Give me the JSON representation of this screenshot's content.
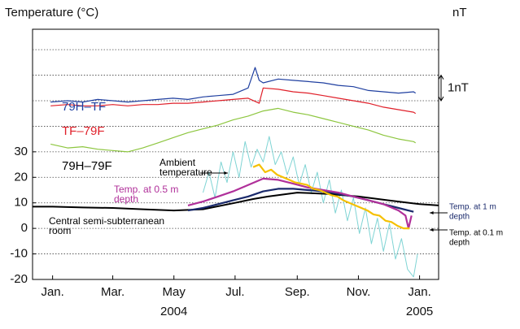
{
  "chart_data": {
    "type": "line",
    "y_label": "Temperature (°C)",
    "y2_label": "nT",
    "ylim": [
      -20,
      78
    ],
    "yticks": [
      30,
      20,
      10,
      0,
      -10,
      -20
    ],
    "grid_values": [
      70,
      60,
      50,
      40,
      30,
      20,
      10,
      0,
      -10
    ],
    "y2lim": [
      -2,
      7.8
    ],
    "scale_bar": {
      "from": 5,
      "to": 6,
      "label": "1nT"
    },
    "xlim": [
      -20,
      385
    ],
    "xticks": [
      {
        "value": 0,
        "label": "Jan."
      },
      {
        "value": 60,
        "label": "Mar."
      },
      {
        "value": 121,
        "label": "May"
      },
      {
        "value": 182,
        "label": "Jul."
      },
      {
        "value": 244,
        "label": "Sep."
      },
      {
        "value": 305,
        "label": "Nov."
      },
      {
        "value": 366,
        "label": "Jan."
      }
    ],
    "year_labels": [
      {
        "value": 121,
        "label": "2004"
      },
      {
        "value": 366,
        "label": "2005"
      }
    ],
    "series": [
      {
        "label": [
          "79H–TF"
        ],
        "color": "#1f3fa0",
        "axis": "y2",
        "x": [
          -2,
          15,
          30,
          45,
          60,
          75,
          90,
          105,
          120,
          135,
          150,
          165,
          180,
          195,
          202,
          206,
          210,
          225,
          240,
          255,
          270,
          285,
          300,
          315,
          330,
          345,
          360,
          362
        ],
        "values": [
          4.95,
          5.0,
          4.95,
          5.05,
          5.0,
          4.95,
          5.0,
          5.05,
          5.1,
          5.05,
          5.15,
          5.2,
          5.25,
          5.5,
          6.3,
          5.8,
          5.7,
          5.85,
          5.8,
          5.75,
          5.7,
          5.6,
          5.55,
          5.4,
          5.35,
          5.3,
          5.35,
          5.3
        ]
      },
      {
        "label": [
          "TF–79F"
        ],
        "color": "#e0202a",
        "axis": "y2",
        "x": [
          -2,
          15,
          30,
          45,
          60,
          75,
          90,
          105,
          120,
          135,
          150,
          165,
          180,
          195,
          206,
          210,
          225,
          240,
          255,
          270,
          285,
          300,
          315,
          330,
          345,
          360,
          362
        ],
        "values": [
          4.8,
          4.85,
          4.8,
          4.8,
          4.85,
          4.8,
          4.85,
          4.85,
          4.9,
          4.9,
          4.95,
          5.0,
          5.05,
          5.1,
          4.9,
          5.5,
          5.45,
          5.35,
          5.3,
          5.2,
          5.1,
          5.0,
          4.9,
          4.75,
          4.65,
          4.55,
          4.5
        ]
      },
      {
        "label": [
          "79H–79F"
        ],
        "color": "#8dc63f",
        "axis": "y2",
        "x": [
          -2,
          15,
          30,
          45,
          60,
          75,
          90,
          105,
          120,
          135,
          150,
          165,
          180,
          195,
          210,
          225,
          240,
          255,
          270,
          285,
          300,
          315,
          330,
          345,
          360,
          362
        ],
        "values": [
          3.3,
          3.15,
          3.2,
          3.1,
          3.05,
          3.0,
          3.15,
          3.35,
          3.55,
          3.75,
          3.9,
          4.05,
          4.25,
          4.4,
          4.6,
          4.7,
          4.55,
          4.45,
          4.3,
          4.15,
          4.0,
          3.85,
          3.65,
          3.5,
          3.4,
          3.35
        ]
      },
      {
        "label": [
          "Ambient",
          "temperature"
        ],
        "color": "#7fd4d4",
        "x": [
          150,
          156,
          162,
          168,
          174,
          180,
          186,
          192,
          198,
          204,
          210,
          216,
          222,
          228,
          234,
          240,
          246,
          252,
          258,
          264,
          270,
          276,
          282,
          288,
          294,
          300,
          306,
          312,
          318,
          324,
          330,
          336,
          342,
          348,
          354,
          360,
          364
        ],
        "values": [
          14,
          22,
          12,
          26,
          18,
          30,
          20,
          34,
          24,
          31,
          26,
          36,
          25,
          30,
          21,
          28,
          17,
          25,
          14,
          22,
          10,
          19,
          6,
          15,
          3,
          12,
          -2,
          8,
          -6,
          4,
          -9,
          2,
          -12,
          -4,
          -16,
          -19,
          -10
        ]
      },
      {
        "label": [
          "Temp. at 0.5 m",
          "depth"
        ],
        "color": "#b0309a",
        "x": [
          135,
          150,
          165,
          180,
          195,
          210,
          225,
          240,
          255,
          270,
          285,
          300,
          315,
          330,
          345,
          352,
          355,
          358
        ],
        "values": [
          9,
          10.5,
          12.5,
          14.5,
          17,
          19.5,
          19,
          17.5,
          16,
          15,
          14,
          12.5,
          11,
          9.5,
          7,
          5,
          0,
          5
        ]
      },
      {
        "label": [
          "Temp. at 1 m",
          "depth"
        ],
        "color": "#1a2a6c",
        "x": [
          135,
          150,
          165,
          180,
          195,
          210,
          225,
          240,
          255,
          270,
          285,
          300,
          315,
          330,
          345,
          360
        ],
        "values": [
          7,
          8,
          9.5,
          11,
          12.5,
          14.5,
          15.5,
          15.5,
          15,
          14.5,
          13.5,
          12.5,
          11,
          9.5,
          8,
          6.5
        ]
      },
      {
        "label": [
          "Temp. at 0.1 m",
          "depth"
        ],
        "color": "#f5c000",
        "x": [
          200,
          206,
          212,
          218,
          224,
          230,
          236,
          242,
          248,
          254,
          260,
          266,
          272,
          278,
          284,
          290,
          296,
          302,
          308,
          314,
          320,
          326,
          332,
          338,
          344,
          350,
          356
        ],
        "values": [
          24,
          25,
          22,
          23,
          21,
          20,
          19,
          18,
          17.5,
          17,
          15.5,
          15,
          14,
          13,
          12.5,
          11,
          10,
          9,
          8,
          7,
          5.5,
          5,
          3,
          2.5,
          1,
          0,
          0
        ]
      },
      {
        "label": [
          "Central semi-subterranean",
          "room"
        ],
        "color": "#000000",
        "x": [
          -20,
          0,
          30,
          60,
          90,
          121,
          150,
          182,
          200,
          215,
          244,
          275,
          305,
          335,
          366,
          385
        ],
        "values": [
          8.5,
          8.5,
          8.2,
          8,
          7.5,
          7,
          7.5,
          10,
          11.5,
          12.5,
          14,
          13.5,
          12.5,
          11,
          9.5,
          9
        ]
      }
    ]
  }
}
